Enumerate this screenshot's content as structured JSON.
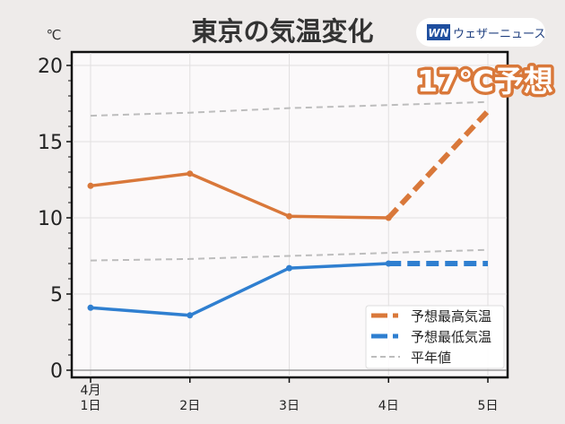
{
  "header": {
    "title": "東京の気温変化",
    "brand_logo": "WN",
    "brand_name": "ウェザーニュース",
    "callout": "17℃予想"
  },
  "colors": {
    "high": "#d9783a",
    "low": "#2f7fd0",
    "normal": "#bdbdbd",
    "callout": "#d9783a"
  },
  "chart_data": {
    "type": "line",
    "title": "東京の気温変化",
    "ylabel": "℃",
    "xlabel": "",
    "ylim": [
      0,
      20
    ],
    "yticks": [
      0,
      5,
      10,
      15,
      20
    ],
    "categories": [
      "4月\n1日",
      "2日",
      "3日",
      "4日",
      "5日"
    ],
    "grid": true,
    "legend_position": "bottom-right",
    "series": [
      {
        "name": "予想最高気温",
        "values": [
          12.1,
          12.9,
          10.1,
          10.0,
          17.0
        ],
        "forecast_from_index": 3
      },
      {
        "name": "予想最低気温",
        "values": [
          4.1,
          3.6,
          6.7,
          7.0,
          7.0
        ],
        "forecast_from_index": 3
      },
      {
        "name": "平年値",
        "values": [
          16.7,
          16.9,
          17.2,
          17.4,
          17.6
        ],
        "style": "dashed"
      },
      {
        "name": "平年値",
        "values": [
          7.2,
          7.3,
          7.5,
          7.7,
          7.9
        ],
        "style": "dashed",
        "legend": false
      }
    ]
  }
}
